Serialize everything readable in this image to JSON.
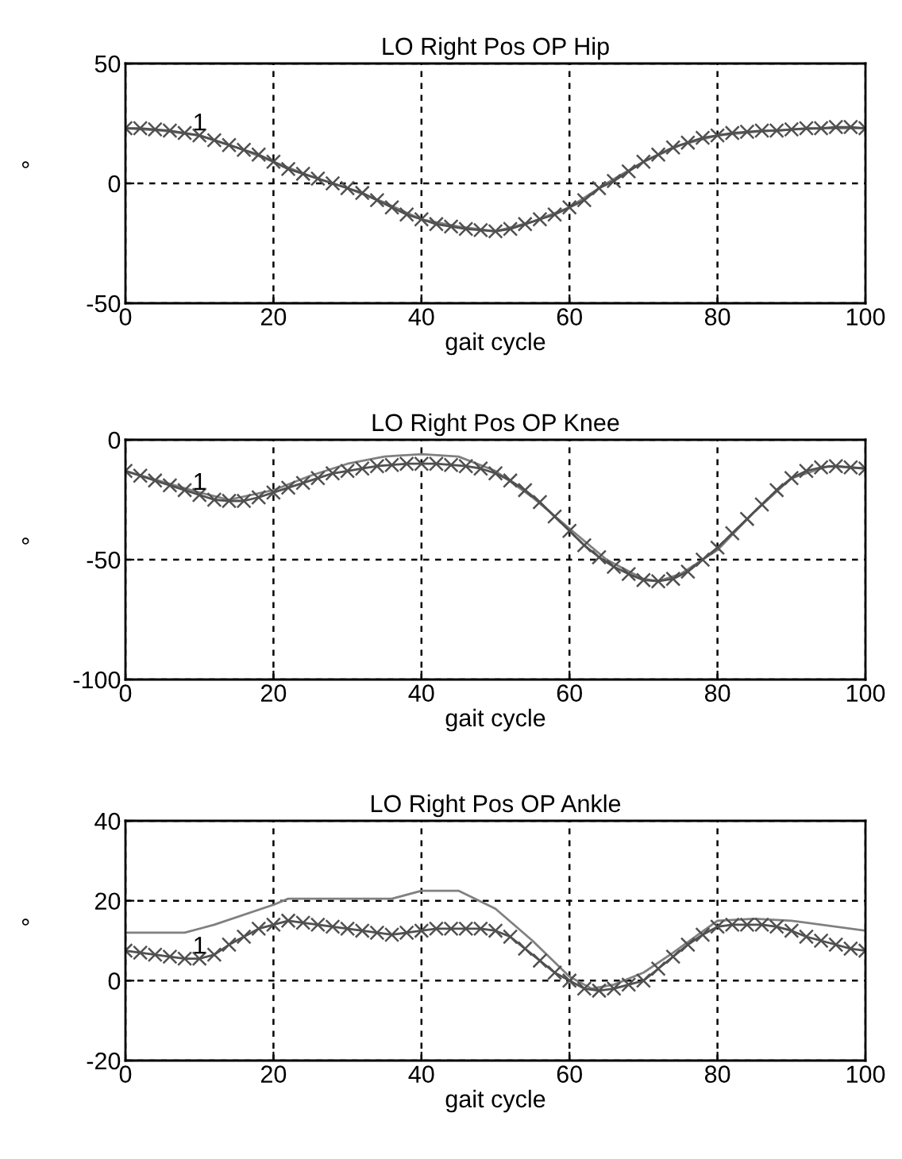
{
  "chart_data": [
    {
      "type": "line",
      "title": "LO Right Pos OP Hip",
      "xlabel": "gait cycle",
      "ylabel": "°",
      "xlim": [
        0,
        100
      ],
      "xticks": [
        0,
        20,
        40,
        60,
        80,
        100
      ],
      "ylim": [
        -50,
        50
      ],
      "yticks": [
        -50,
        0,
        50
      ],
      "grid": true,
      "line_style": "solid",
      "annotations": [
        "1"
      ],
      "series": [
        {
          "color": "#808080",
          "marker": "none",
          "x": [
            0,
            5,
            10,
            15,
            20,
            25,
            30,
            35,
            40,
            45,
            50,
            55,
            60,
            65,
            70,
            75,
            80,
            85,
            90,
            95,
            100
          ],
          "values": [
            23,
            22,
            20,
            15,
            9,
            3,
            -2,
            -8,
            -15,
            -18,
            -20,
            -16,
            -10,
            0,
            9,
            16,
            20,
            21.5,
            22.5,
            23,
            23
          ]
        },
        {
          "color": "#505050",
          "marker": "cross",
          "x": [
            0,
            2,
            4,
            6,
            8,
            10,
            12,
            14,
            16,
            18,
            20,
            22,
            24,
            26,
            28,
            30,
            32,
            34,
            36,
            38,
            40,
            42,
            44,
            46,
            48,
            50,
            52,
            54,
            56,
            58,
            60,
            62,
            64,
            66,
            68,
            70,
            72,
            74,
            76,
            78,
            80,
            82,
            84,
            86,
            88,
            90,
            92,
            94,
            96,
            98,
            100
          ],
          "values": [
            23,
            23,
            22.5,
            22,
            21,
            20,
            18,
            16,
            14,
            12,
            9,
            6,
            4,
            2,
            0,
            -2,
            -4,
            -7,
            -10,
            -13,
            -15,
            -17,
            -18,
            -19,
            -19.5,
            -20,
            -19,
            -17,
            -15,
            -13,
            -10,
            -7,
            -2,
            1,
            5,
            9,
            12,
            15,
            17,
            19,
            20,
            21,
            21.5,
            22,
            22,
            22.5,
            23,
            23,
            23.5,
            23.5,
            23
          ]
        }
      ]
    },
    {
      "type": "line",
      "title": "LO Right Pos OP Knee",
      "xlabel": "gait cycle",
      "ylabel": "°",
      "xlim": [
        0,
        100
      ],
      "xticks": [
        0,
        20,
        40,
        60,
        80,
        100
      ],
      "ylim": [
        -100,
        0
      ],
      "yticks": [
        -100,
        -50,
        0
      ],
      "grid": true,
      "line_style": "solid",
      "annotations": [
        "1"
      ],
      "series": [
        {
          "color": "#808080",
          "marker": "none",
          "x": [
            0,
            10,
            14,
            20,
            25,
            30,
            35,
            40,
            45,
            50,
            55,
            60,
            65,
            70,
            72,
            75,
            80,
            85,
            90,
            95,
            100
          ],
          "values": [
            -13,
            -22,
            -25,
            -21,
            -15,
            -10,
            -7,
            -6,
            -7,
            -13,
            -24,
            -37,
            -50,
            -58,
            -59,
            -56,
            -46,
            -30,
            -16,
            -11,
            -12
          ]
        },
        {
          "color": "#505050",
          "marker": "cross",
          "x": [
            0,
            2,
            4,
            6,
            8,
            10,
            12,
            14,
            16,
            18,
            20,
            22,
            24,
            26,
            28,
            30,
            32,
            34,
            36,
            38,
            40,
            42,
            44,
            46,
            48,
            50,
            52,
            54,
            56,
            58,
            60,
            62,
            64,
            66,
            68,
            70,
            72,
            74,
            76,
            78,
            80,
            82,
            84,
            86,
            88,
            90,
            92,
            94,
            96,
            98,
            100
          ],
          "values": [
            -13,
            -15,
            -17,
            -19,
            -21,
            -23,
            -25,
            -25.5,
            -25.5,
            -24,
            -22,
            -20,
            -18,
            -16,
            -14,
            -13,
            -12,
            -11,
            -10.5,
            -10,
            -10,
            -10,
            -10.5,
            -11,
            -12,
            -14,
            -17,
            -21,
            -26,
            -32,
            -38,
            -44,
            -49,
            -53,
            -56,
            -58.5,
            -59,
            -58,
            -55,
            -50,
            -45,
            -39,
            -33,
            -27,
            -21,
            -16,
            -13,
            -11.5,
            -11,
            -11.5,
            -12
          ]
        }
      ]
    },
    {
      "type": "line",
      "title": "LO Right Pos OP Ankle",
      "xlabel": "gait cycle",
      "ylabel": "°",
      "xlim": [
        0,
        100
      ],
      "xticks": [
        0,
        20,
        40,
        60,
        80,
        100
      ],
      "ylim": [
        -20,
        40
      ],
      "yticks": [
        -20,
        0,
        20,
        40
      ],
      "grid": true,
      "line_style": "solid",
      "annotations": [
        "1"
      ],
      "series": [
        {
          "color": "#808080",
          "marker": "none",
          "x": [
            0,
            8,
            12,
            20,
            22,
            36,
            40,
            45,
            50,
            55,
            60,
            63,
            66,
            70,
            74,
            80,
            85,
            90,
            100
          ],
          "values": [
            12,
            12,
            14,
            19,
            20.5,
            20.5,
            22.5,
            22.5,
            18,
            10,
            1,
            -2,
            -1,
            2,
            7,
            15,
            15.5,
            15,
            12.5
          ]
        },
        {
          "color": "#505050",
          "marker": "cross",
          "x": [
            0,
            2,
            4,
            6,
            8,
            10,
            12,
            14,
            16,
            18,
            20,
            22,
            24,
            26,
            28,
            30,
            32,
            34,
            36,
            38,
            40,
            42,
            44,
            46,
            48,
            50,
            52,
            54,
            56,
            58,
            60,
            62,
            64,
            66,
            68,
            70,
            72,
            74,
            76,
            78,
            80,
            82,
            84,
            86,
            88,
            90,
            92,
            94,
            96,
            98,
            100
          ],
          "values": [
            7.5,
            7,
            6.5,
            6,
            5.5,
            5.5,
            6.5,
            9,
            11,
            13,
            14,
            15,
            14.5,
            14,
            13.5,
            13,
            12.5,
            12,
            11.5,
            12,
            12.5,
            13,
            13,
            13,
            13,
            12.5,
            11,
            8,
            5,
            2,
            0,
            -2,
            -2.5,
            -2,
            -1,
            0,
            3,
            6,
            9,
            11.5,
            13.5,
            14,
            14,
            14,
            13.5,
            12.5,
            11,
            10,
            9,
            8,
            7.5
          ]
        }
      ]
    }
  ]
}
